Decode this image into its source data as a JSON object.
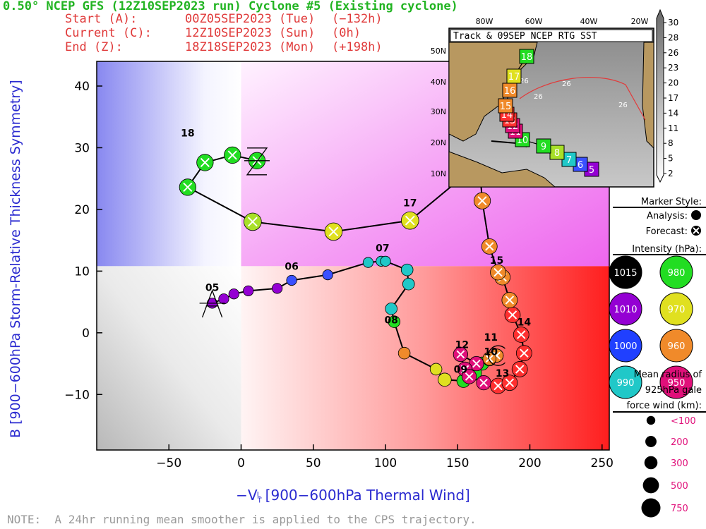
{
  "header": {
    "title": "0.50° NCEP GFS (12Z10SEP2023 run) Cyclone #5 (Existing cyclone)",
    "start_label": "Start (A):",
    "current_label": "Current (C):",
    "end_label": "End (Z):",
    "start_value": "00Z05SEP2023 (Tue)",
    "current_value": "12Z10SEP2023 (Sun)",
    "end_value": "18Z18SEP2023 (Mon)",
    "start_offset": "(−132h)",
    "current_offset": "(0h)",
    "end_offset": "(+198h)"
  },
  "colors": {
    "analysis_line": "#000000",
    "title": "#22b422",
    "header": "#e03a3a",
    "axis_label": "#2a2ad0",
    "note": "#9a9a9a"
  },
  "chart_data": {
    "type": "scatter",
    "title": "",
    "xlabel": "−V_T^L [900−600hPa Thermal Wind]",
    "ylabel": "B [900−600hPa Storm-Relative Thickness Symmetry]",
    "xlim": [
      -100,
      255
    ],
    "ylim": [
      -19,
      44
    ],
    "x_ticks": [
      -50,
      0,
      50,
      100,
      150,
      200,
      250
    ],
    "y_ticks": [
      -10,
      0,
      10,
      20,
      30,
      40
    ],
    "grid": false,
    "analysis": {
      "x": [
        -20,
        -12,
        -5,
        5,
        25,
        35,
        60,
        88,
        97,
        100,
        115,
        116,
        104,
        106,
        113,
        135,
        141,
        154,
        158,
        162,
        167,
        172,
        177
      ],
      "y": [
        4.8,
        5.5,
        6.3,
        6.8,
        7.2,
        8.5,
        9.4,
        11.4,
        11.6,
        11.6,
        10.2,
        7.9,
        3.9,
        1.8,
        -3.3,
        -5.9,
        -7.6,
        -7.8,
        -7.2,
        -6.5,
        -5.0,
        -4.3,
        -3.7
      ],
      "sizes_km": [
        100,
        100,
        100,
        100,
        100,
        100,
        100,
        100,
        100,
        100,
        150,
        150,
        150,
        150,
        150,
        150,
        200,
        200,
        200,
        200,
        200,
        200,
        200
      ],
      "colors": [
        "#9400d3",
        "#9400d3",
        "#9400d3",
        "#9400d3",
        "#9400d3",
        "#3a50ff",
        "#3a50ff",
        "#20c8c8",
        "#20c8c8",
        "#20c8c8",
        "#20c8c8",
        "#20c8c8",
        "#20c8c8",
        "#22dd22",
        "#f08a2a",
        "#e0e020",
        "#e0e020",
        "#22dd22",
        "#22dd22",
        "#22dd22",
        "#22dd22",
        "#e0e020",
        "#e0e020"
      ]
    },
    "forecast": {
      "x": [
        177,
        172,
        163,
        152,
        155,
        158,
        168,
        178,
        186,
        193,
        196,
        194,
        188,
        186,
        181,
        178,
        172,
        167,
        165,
        117,
        64,
        8,
        -37,
        -25,
        -6,
        11
      ],
      "y": [
        -3.7,
        -4.2,
        -5.0,
        -3.5,
        -5.9,
        -7.1,
        -8.1,
        -8.6,
        -8.1,
        -5.9,
        -3.3,
        -0.3,
        2.9,
        5.3,
        9.0,
        9.8,
        14.0,
        21.4,
        27.5,
        18.2,
        16.4,
        18.0,
        23.6,
        27.6,
        28.8,
        27.9
      ],
      "sizes_km": [
        200,
        200,
        250,
        250,
        250,
        250,
        250,
        300,
        300,
        300,
        300,
        300,
        300,
        300,
        300,
        300,
        300,
        350,
        350,
        400,
        400,
        400,
        350,
        350,
        350,
        350
      ],
      "colors": [
        "#f08a2a",
        "#f08a2a",
        "#e0107a",
        "#e0107a",
        "#e0107a",
        "#e0107a",
        "#e0107a",
        "#ff3030",
        "#ff3030",
        "#ff3030",
        "#ff3030",
        "#ff3030",
        "#ff3030",
        "#f08a2a",
        "#f08a2a",
        "#f08a2a",
        "#f08a2a",
        "#f08a2a",
        "#f08a2a",
        "#e0e020",
        "#e0e020",
        "#a8e028",
        "#22dd22",
        "#22dd22",
        "#22dd22",
        "#22dd22"
      ]
    },
    "day_labels": [
      {
        "text": "05",
        "x": -20,
        "y": 6.8
      },
      {
        "text": "06",
        "x": 35,
        "y": 10.2
      },
      {
        "text": "07",
        "x": 98,
        "y": 13.2
      },
      {
        "text": "08",
        "x": 104,
        "y": 1.5
      },
      {
        "text": "09",
        "x": 152,
        "y": -6.5
      },
      {
        "text": "10",
        "x": 173,
        "y": -3.6
      },
      {
        "text": "11",
        "x": 173,
        "y": -1.3
      },
      {
        "text": "12",
        "x": 153,
        "y": -2.5
      },
      {
        "text": "13",
        "x": 181,
        "y": -7.1
      },
      {
        "text": "14",
        "x": 196,
        "y": 1.2
      },
      {
        "text": "15",
        "x": 177,
        "y": 11.2
      },
      {
        "text": "17",
        "x": 117,
        "y": 20.5
      },
      {
        "text": "18",
        "x": -37,
        "y": 31.8
      }
    ],
    "start_marker": {
      "label": "A",
      "x": -20,
      "y": 4.8
    },
    "end_marker": {
      "label": "Z",
      "x": 11,
      "y": 27.9
    },
    "current_marker": {
      "label": "C",
      "x": 177,
      "y": -3.7
    }
  },
  "inset": {
    "title": "Track & 09SEP NCEP RTG SST",
    "lon_ticks": [
      "80W",
      "60W",
      "40W",
      "20W"
    ],
    "lat_ticks": [
      "50N",
      "40N",
      "30N",
      "20N",
      "10N"
    ],
    "sst_labels": [
      "26",
      "26",
      "26",
      "26"
    ],
    "track_days": [
      "5",
      "6",
      "7",
      "8",
      "9",
      "10",
      "11",
      "12",
      "13",
      "14",
      "15",
      "16",
      "17",
      "18"
    ],
    "track_colors": [
      "#9400d3",
      "#3a50ff",
      "#20c8c8",
      "#a8e028",
      "#22dd22",
      "#22dd22",
      "#e0107a",
      "#e0107a",
      "#ff3030",
      "#ff3030",
      "#f08a2a",
      "#f08a2a",
      "#e0e020",
      "#22dd22"
    ],
    "colorbar_ticks": [
      "30",
      "28",
      "26",
      "23",
      "20",
      "17",
      "14",
      "11",
      "8",
      "5",
      "2"
    ]
  },
  "legend": {
    "marker_style_title": "Marker Style:",
    "analysis_label": "Analysis:",
    "forecast_label": "Forecast:",
    "intensity_title": "Intensity (hPa):",
    "intensity": [
      {
        "value": "1015",
        "color": "#000000",
        "text_color": "#ffffff"
      },
      {
        "value": "980",
        "color": "#22dd22",
        "text_color": "#ffffff"
      },
      {
        "value": "1010",
        "color": "#9400d3",
        "text_color": "#ffffff"
      },
      {
        "value": "970",
        "color": "#e0e020",
        "text_color": "#ffffff"
      },
      {
        "value": "1000",
        "color": "#2040ff",
        "text_color": "#ffffff"
      },
      {
        "value": "960",
        "color": "#f08a2a",
        "text_color": "#ffffff"
      },
      {
        "value": "990",
        "color": "#20c8c8",
        "text_color": "#ffffff"
      },
      {
        "value": "950",
        "color": "#e0107a",
        "text_color": "#ffffff"
      }
    ],
    "radius_title": [
      "Mean radius of",
      "925hPa gale",
      "force wind (km):"
    ],
    "radius": [
      {
        "label": "<100",
        "km": 100
      },
      {
        "label": "200",
        "km": 200
      },
      {
        "label": "300",
        "km": 300
      },
      {
        "label": "500",
        "km": 500
      },
      {
        "label": "750",
        "km": 750
      }
    ]
  },
  "note": "NOTE:  A 24hr running mean smoother is applied to the CPS trajectory."
}
